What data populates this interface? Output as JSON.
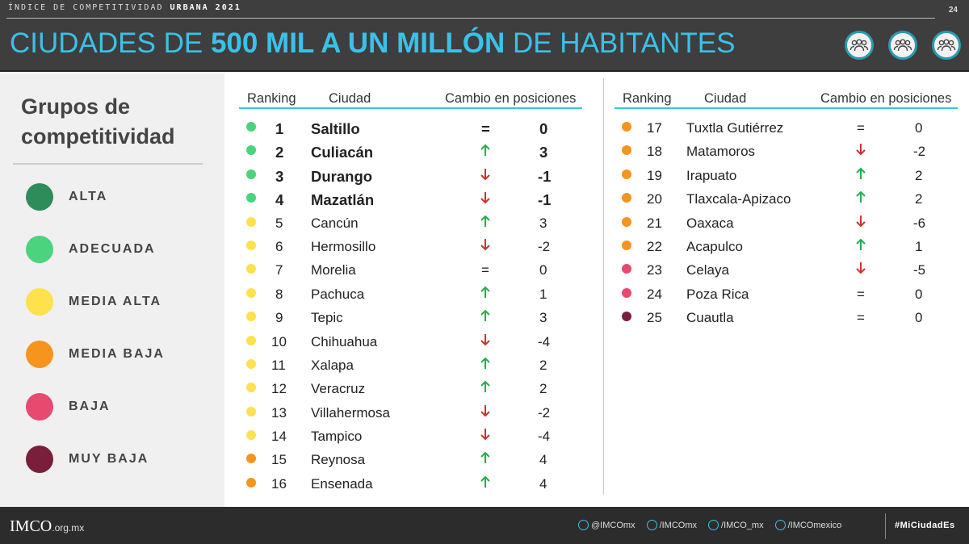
{
  "header": {
    "kicker_light": "ÍNDICE DE COMPETITIVIDAD",
    "kicker_bold": "URBANA 2021",
    "page": "24",
    "title_a": "CIUDADES DE ",
    "title_b": "500 MIL A UN MILLÓN",
    "title_c": " DE HABITANTES",
    "icons": [
      "people-group-icon",
      "people-group-icon",
      "people-group-icon"
    ]
  },
  "colors": {
    "alta": "#2e8b5a",
    "adecuada": "#4cd37e",
    "media_alta": "#fde14d",
    "media_baja": "#f7941d",
    "baja": "#e8496f",
    "muy_baja": "#7a1f3b",
    "accent": "#3bc1e8",
    "up": "#22b04b",
    "down": "#d0312d"
  },
  "groups": {
    "title_1": "Grupos de",
    "title_2": "competitividad",
    "items": [
      {
        "label": "ALTA",
        "key": "alta"
      },
      {
        "label": "ADECUADA",
        "key": "adecuada"
      },
      {
        "label": "MEDIA ALTA",
        "key": "media_alta"
      },
      {
        "label": "MEDIA BAJA",
        "key": "media_baja"
      },
      {
        "label": "BAJA",
        "key": "baja"
      },
      {
        "label": "MUY BAJA",
        "key": "muy_baja"
      }
    ]
  },
  "table": {
    "headers": {
      "ranking": "Ranking",
      "city": "Ciudad",
      "change": "Cambio en posiciones"
    },
    "rows": [
      {
        "rank": "1",
        "city": "Saltillo",
        "dir": "=",
        "change": "0",
        "group": "adecuada"
      },
      {
        "rank": "2",
        "city": "Culiacán",
        "dir": "up",
        "change": "3",
        "group": "adecuada"
      },
      {
        "rank": "3",
        "city": "Durango",
        "dir": "down",
        "change": "-1",
        "group": "adecuada"
      },
      {
        "rank": "4",
        "city": "Mazatlán",
        "dir": "down",
        "change": "-1",
        "group": "adecuada"
      },
      {
        "rank": "5",
        "city": "Cancún",
        "dir": "up",
        "change": "3",
        "group": "media_alta"
      },
      {
        "rank": "6",
        "city": "Hermosillo",
        "dir": "down",
        "change": "-2",
        "group": "media_alta"
      },
      {
        "rank": "7",
        "city": "Morelia",
        "dir": "=",
        "change": "0",
        "group": "media_alta"
      },
      {
        "rank": "8",
        "city": "Pachuca",
        "dir": "up",
        "change": "1",
        "group": "media_alta"
      },
      {
        "rank": "9",
        "city": "Tepic",
        "dir": "up",
        "change": "3",
        "group": "media_alta"
      },
      {
        "rank": "10",
        "city": "Chihuahua",
        "dir": "down",
        "change": "-4",
        "group": "media_alta"
      },
      {
        "rank": "11",
        "city": "Xalapa",
        "dir": "up",
        "change": "2",
        "group": "media_alta"
      },
      {
        "rank": "12",
        "city": "Veracruz",
        "dir": "up",
        "change": "2",
        "group": "media_alta"
      },
      {
        "rank": "13",
        "city": "Villahermosa",
        "dir": "down",
        "change": "-2",
        "group": "media_alta"
      },
      {
        "rank": "14",
        "city": "Tampico",
        "dir": "down",
        "change": "-4",
        "group": "media_alta"
      },
      {
        "rank": "15",
        "city": "Reynosa",
        "dir": "up",
        "change": "4",
        "group": "media_baja"
      },
      {
        "rank": "16",
        "city": "Ensenada",
        "dir": "up",
        "change": "4",
        "group": "media_baja"
      },
      {
        "rank": "17",
        "city": "Tuxtla Gutiérrez",
        "dir": "=",
        "change": "0",
        "group": "media_baja"
      },
      {
        "rank": "18",
        "city": "Matamoros",
        "dir": "down",
        "change": "-2",
        "group": "media_baja"
      },
      {
        "rank": "19",
        "city": "Irapuato",
        "dir": "up",
        "change": "2",
        "group": "media_baja"
      },
      {
        "rank": "20",
        "city": "Tlaxcala-Apizaco",
        "dir": "up",
        "change": "2",
        "group": "media_baja"
      },
      {
        "rank": "21",
        "city": "Oaxaca",
        "dir": "down",
        "change": "-6",
        "group": "media_baja"
      },
      {
        "rank": "22",
        "city": "Acapulco",
        "dir": "up",
        "change": "1",
        "group": "media_baja"
      },
      {
        "rank": "23",
        "city": "Celaya",
        "dir": "down",
        "change": "-5",
        "group": "baja"
      },
      {
        "rank": "24",
        "city": "Poza Rica",
        "dir": "=",
        "change": "0",
        "group": "baja"
      },
      {
        "rank": "25",
        "city": "Cuautla",
        "dir": "=",
        "change": "0",
        "group": "muy_baja"
      }
    ]
  },
  "footer": {
    "logo": "IMCO",
    "domain": ".org.mx",
    "social": [
      {
        "icon": "twitter-icon",
        "text": "@IMCOmx"
      },
      {
        "icon": "facebook-icon",
        "text": "/IMCOmx"
      },
      {
        "icon": "instagram-icon",
        "text": "/IMCO_mx"
      },
      {
        "icon": "youtube-icon",
        "text": "/IMCOmexico"
      }
    ],
    "hashtag": "#MiCiudadEs"
  }
}
